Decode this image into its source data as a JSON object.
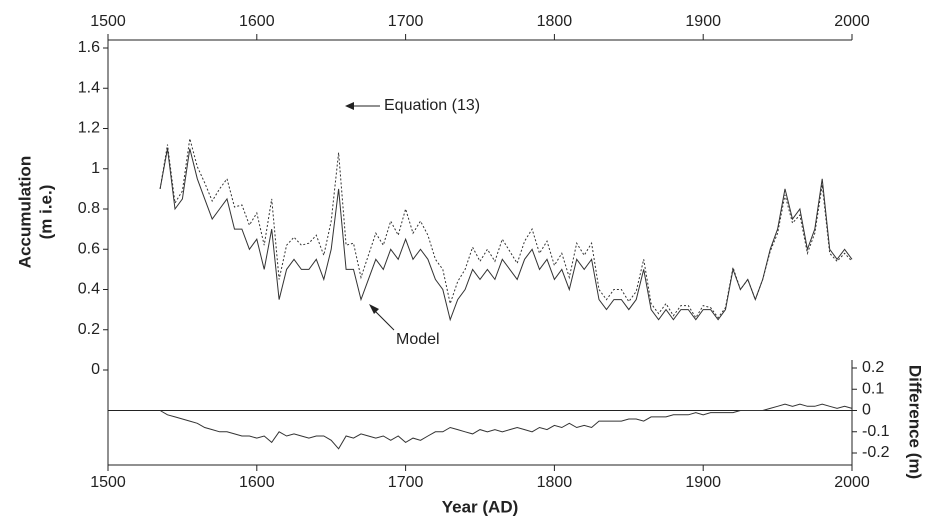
{
  "chart_data": [
    {
      "type": "line",
      "ylabel": [
        "Accumulation",
        "(m i.e.)"
      ],
      "annotations": [
        "Equation (13)",
        "Model"
      ],
      "xlim": [
        1500,
        2000
      ],
      "xticks": [
        1500,
        1600,
        1700,
        1800,
        1900,
        2000
      ],
      "ylim": [
        0,
        1.6
      ],
      "yticks": [
        0,
        0.2,
        0.4,
        0.6,
        0.8,
        1,
        1.2,
        1.4,
        1.6
      ],
      "x": [
        1535,
        1540,
        1545,
        1550,
        1555,
        1560,
        1565,
        1570,
        1575,
        1580,
        1585,
        1590,
        1595,
        1600,
        1605,
        1610,
        1615,
        1620,
        1625,
        1630,
        1635,
        1640,
        1645,
        1650,
        1655,
        1660,
        1665,
        1670,
        1675,
        1680,
        1685,
        1690,
        1695,
        1700,
        1705,
        1710,
        1715,
        1720,
        1725,
        1730,
        1735,
        1740,
        1745,
        1750,
        1755,
        1760,
        1765,
        1770,
        1775,
        1780,
        1785,
        1790,
        1795,
        1800,
        1805,
        1810,
        1815,
        1820,
        1825,
        1830,
        1835,
        1840,
        1845,
        1850,
        1855,
        1860,
        1865,
        1870,
        1875,
        1880,
        1885,
        1890,
        1895,
        1900,
        1905,
        1910,
        1915,
        1920,
        1925,
        1930,
        1935,
        1940,
        1945,
        1950,
        1955,
        1960,
        1965,
        1970,
        1975,
        1980,
        1985,
        1990,
        1995,
        2000
      ],
      "series": [
        {
          "name": "Model",
          "color": "#333333",
          "linestyle": "solid",
          "values": [
            0.9,
            1.1,
            0.8,
            0.85,
            1.1,
            0.95,
            0.85,
            0.75,
            0.8,
            0.85,
            0.7,
            0.7,
            0.6,
            0.65,
            0.5,
            0.7,
            0.35,
            0.5,
            0.55,
            0.5,
            0.5,
            0.55,
            0.45,
            0.6,
            0.9,
            0.5,
            0.5,
            0.35,
            0.45,
            0.55,
            0.5,
            0.6,
            0.55,
            0.65,
            0.55,
            0.6,
            0.55,
            0.45,
            0.4,
            0.25,
            0.35,
            0.4,
            0.5,
            0.45,
            0.5,
            0.45,
            0.55,
            0.5,
            0.45,
            0.55,
            0.6,
            0.5,
            0.55,
            0.45,
            0.5,
            0.4,
            0.55,
            0.5,
            0.55,
            0.35,
            0.3,
            0.35,
            0.35,
            0.3,
            0.35,
            0.5,
            0.3,
            0.25,
            0.3,
            0.25,
            0.3,
            0.3,
            0.25,
            0.3,
            0.3,
            0.25,
            0.3,
            0.5,
            0.4,
            0.45,
            0.35,
            0.45,
            0.6,
            0.7,
            0.9,
            0.75,
            0.8,
            0.6,
            0.7,
            0.95,
            0.6,
            0.55,
            0.6,
            0.55
          ]
        },
        {
          "name": "Equation (13)",
          "color": "#333333",
          "linestyle": "dotted",
          "values": [
            0.9,
            1.12,
            0.83,
            0.89,
            1.15,
            1.01,
            0.93,
            0.84,
            0.9,
            0.95,
            0.81,
            0.82,
            0.72,
            0.78,
            0.62,
            0.85,
            0.45,
            0.62,
            0.66,
            0.62,
            0.63,
            0.67,
            0.57,
            0.74,
            1.08,
            0.62,
            0.63,
            0.46,
            0.57,
            0.68,
            0.62,
            0.74,
            0.67,
            0.8,
            0.68,
            0.74,
            0.67,
            0.55,
            0.5,
            0.33,
            0.44,
            0.5,
            0.61,
            0.54,
            0.6,
            0.54,
            0.65,
            0.59,
            0.53,
            0.64,
            0.7,
            0.58,
            0.64,
            0.52,
            0.58,
            0.46,
            0.63,
            0.57,
            0.63,
            0.4,
            0.35,
            0.4,
            0.4,
            0.34,
            0.39,
            0.55,
            0.33,
            0.28,
            0.33,
            0.27,
            0.32,
            0.32,
            0.26,
            0.32,
            0.31,
            0.26,
            0.31,
            0.51,
            0.4,
            0.45,
            0.35,
            0.45,
            0.59,
            0.68,
            0.87,
            0.73,
            0.77,
            0.58,
            0.68,
            0.92,
            0.58,
            0.54,
            0.58,
            0.54
          ]
        }
      ]
    },
    {
      "type": "line",
      "xlabel": "Year (AD)",
      "ylabel": "Difference (m)",
      "xlim": [
        1500,
        2000
      ],
      "xticks": [
        1500,
        1600,
        1700,
        1800,
        1900,
        2000
      ],
      "ylim": [
        -0.2,
        0.2
      ],
      "yticks": [
        0.2,
        0.1,
        0,
        -0.1,
        -0.2
      ],
      "x": [
        1535,
        1540,
        1545,
        1550,
        1555,
        1560,
        1565,
        1570,
        1575,
        1580,
        1585,
        1590,
        1595,
        1600,
        1605,
        1610,
        1615,
        1620,
        1625,
        1630,
        1635,
        1640,
        1645,
        1650,
        1655,
        1660,
        1665,
        1670,
        1675,
        1680,
        1685,
        1690,
        1695,
        1700,
        1705,
        1710,
        1715,
        1720,
        1725,
        1730,
        1735,
        1740,
        1745,
        1750,
        1755,
        1760,
        1765,
        1770,
        1775,
        1780,
        1785,
        1790,
        1795,
        1800,
        1805,
        1810,
        1815,
        1820,
        1825,
        1830,
        1835,
        1840,
        1845,
        1850,
        1855,
        1860,
        1865,
        1870,
        1875,
        1880,
        1885,
        1890,
        1895,
        1900,
        1905,
        1910,
        1915,
        1920,
        1925,
        1930,
        1935,
        1940,
        1945,
        1950,
        1955,
        1960,
        1965,
        1970,
        1975,
        1980,
        1985,
        1990,
        1995,
        2000
      ],
      "series": [
        {
          "color": "#333333",
          "linestyle": "solid",
          "values": [
            0,
            -0.02,
            -0.03,
            -0.04,
            -0.05,
            -0.06,
            -0.08,
            -0.09,
            -0.1,
            -0.1,
            -0.11,
            -0.12,
            -0.12,
            -0.13,
            -0.12,
            -0.15,
            -0.1,
            -0.12,
            -0.11,
            -0.12,
            -0.13,
            -0.12,
            -0.12,
            -0.14,
            -0.18,
            -0.12,
            -0.13,
            -0.11,
            -0.12,
            -0.13,
            -0.12,
            -0.14,
            -0.12,
            -0.15,
            -0.13,
            -0.14,
            -0.12,
            -0.1,
            -0.1,
            -0.08,
            -0.09,
            -0.1,
            -0.11,
            -0.09,
            -0.1,
            -0.09,
            -0.1,
            -0.09,
            -0.08,
            -0.09,
            -0.1,
            -0.08,
            -0.09,
            -0.07,
            -0.08,
            -0.06,
            -0.08,
            -0.07,
            -0.08,
            -0.05,
            -0.05,
            -0.05,
            -0.05,
            -0.04,
            -0.04,
            -0.05,
            -0.03,
            -0.03,
            -0.03,
            -0.02,
            -0.02,
            -0.02,
            -0.01,
            -0.02,
            -0.01,
            -0.01,
            -0.01,
            -0.01,
            0,
            0,
            0,
            0,
            0.01,
            0.02,
            0.03,
            0.02,
            0.03,
            0.02,
            0.02,
            0.03,
            0.02,
            0.01,
            0.02,
            0.01
          ]
        }
      ]
    }
  ]
}
